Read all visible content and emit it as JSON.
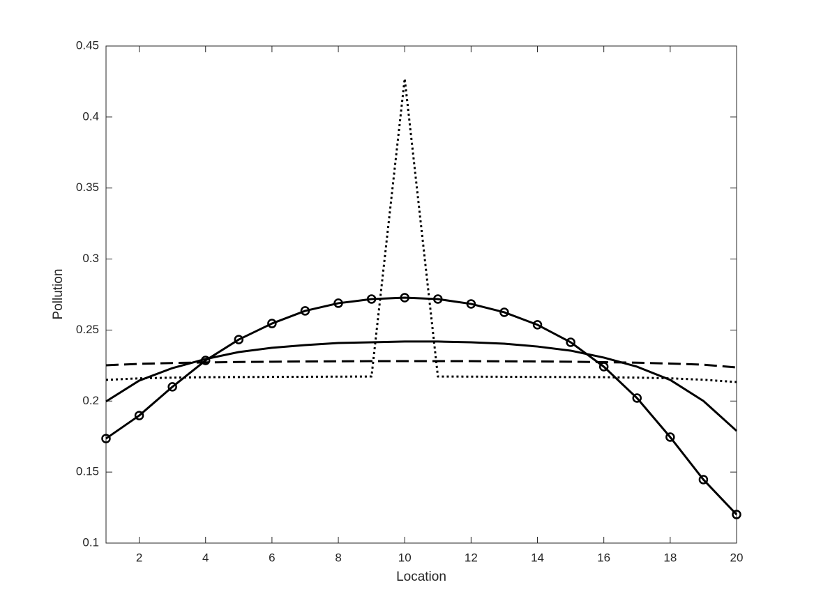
{
  "chart_data": {
    "type": "line",
    "x_label": "Location",
    "y_label": "Pollution",
    "x": [
      1,
      2,
      3,
      4,
      5,
      6,
      7,
      8,
      9,
      10,
      11,
      12,
      13,
      14,
      15,
      16,
      17,
      18,
      19,
      20
    ],
    "series": [
      {
        "color": "#000000",
        "linestyle": "solid",
        "marker": "circle",
        "values": [
          0.1736,
          0.1898,
          0.21,
          0.2286,
          0.2433,
          0.2546,
          0.2635,
          0.2689,
          0.2718,
          0.2728,
          0.2718,
          0.2684,
          0.2625,
          0.2537,
          0.2414,
          0.2242,
          0.2021,
          0.1746,
          0.1447,
          0.1201
        ]
      },
      {
        "color": "#000000",
        "linestyle": "solid",
        "marker": "none",
        "values": [
          0.1997,
          0.2144,
          0.2232,
          0.2296,
          0.2345,
          0.2375,
          0.2394,
          0.2409,
          0.2414,
          0.2419,
          0.2419,
          0.2414,
          0.2404,
          0.2384,
          0.2355,
          0.2306,
          0.2242,
          0.2149,
          0.2001,
          0.179
        ]
      },
      {
        "color": "#000000",
        "linestyle": "dashed",
        "marker": "none",
        "values": [
          0.2252,
          0.2262,
          0.2268,
          0.2272,
          0.2275,
          0.2277,
          0.2279,
          0.228,
          0.2281,
          0.2281,
          0.2281,
          0.2281,
          0.228,
          0.2279,
          0.2277,
          0.2274,
          0.227,
          0.2264,
          0.2256,
          0.2237
        ]
      },
      {
        "color": "#000000",
        "linestyle": "dotted",
        "marker": "none",
        "values": [
          0.2149,
          0.216,
          0.2165,
          0.2168,
          0.2169,
          0.217,
          0.2171,
          0.2172,
          0.2173,
          0.427,
          0.2173,
          0.2172,
          0.2171,
          0.217,
          0.2169,
          0.2168,
          0.2165,
          0.216,
          0.215,
          0.2134
        ]
      }
    ],
    "xlim": [
      1,
      20
    ],
    "xticks": [
      2,
      4,
      6,
      8,
      10,
      12,
      14,
      16,
      18,
      20
    ],
    "ylim": [
      0.1,
      0.45
    ],
    "yticks": [
      0.1,
      0.15,
      0.2,
      0.25,
      0.3,
      0.35,
      0.4,
      0.45
    ],
    "grid": false,
    "box": true
  }
}
